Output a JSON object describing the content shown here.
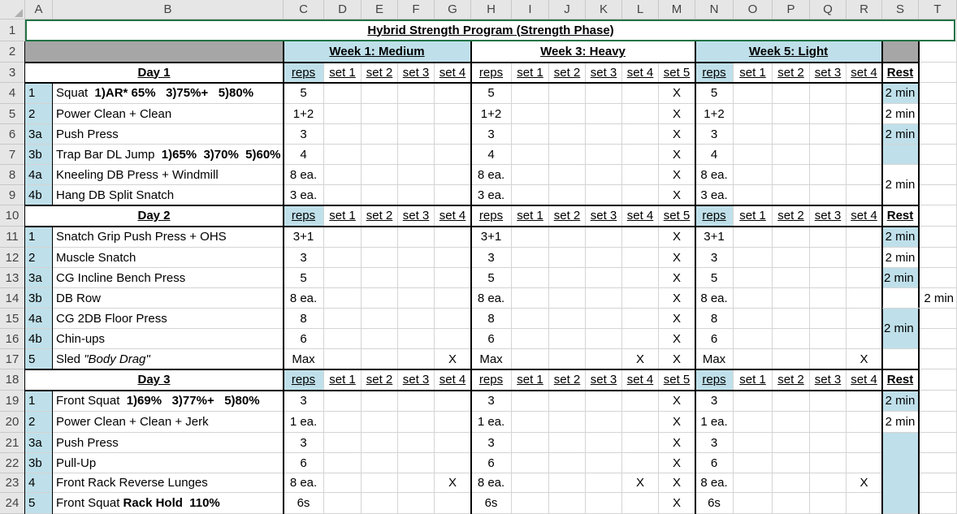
{
  "columns": [
    "A",
    "B",
    "C",
    "D",
    "E",
    "F",
    "G",
    "H",
    "I",
    "J",
    "K",
    "L",
    "M",
    "N",
    "O",
    "P",
    "Q",
    "R",
    "S",
    "T"
  ],
  "rows": [
    "1",
    "2",
    "3",
    "4",
    "5",
    "6",
    "7",
    "8",
    "9",
    "10",
    "11",
    "12",
    "13",
    "14",
    "15",
    "16",
    "17",
    "18",
    "19",
    "20",
    "21",
    "22",
    "23",
    "24"
  ],
  "title": "Hybrid Strength Program (Strength Phase)",
  "weeks": [
    "Week 1: Medium",
    "Week 3: Heavy",
    "Week 5: Light"
  ],
  "sub_headers": {
    "rest": "Rest",
    "week1": [
      "reps",
      "set 1",
      "set 2",
      "set 3",
      "set 4"
    ],
    "week3": [
      "reps",
      "set 1",
      "set 2",
      "set 3",
      "set 4",
      "set 5"
    ],
    "week5": [
      "reps",
      "set 1",
      "set 2",
      "set 3",
      "set 4"
    ]
  },
  "days": [
    {
      "name": "Day 1",
      "exercises": [
        {
          "num": "1",
          "name": "Squat  1)AR* 65%   3)75%+   5)80%",
          "w1": [
            "5",
            "",
            "",
            "",
            ""
          ],
          "w3": [
            "5",
            "",
            "",
            "",
            "",
            "X"
          ],
          "w5": [
            "5",
            "",
            "",
            "",
            ""
          ],
          "rest": "2 min"
        },
        {
          "num": "2",
          "name": "Power Clean + Clean",
          "w1": [
            "1+2",
            "",
            "",
            "",
            ""
          ],
          "w3": [
            "1+2",
            "",
            "",
            "",
            "",
            "X"
          ],
          "w5": [
            "1+2",
            "",
            "",
            "",
            ""
          ],
          "rest": "2 min"
        },
        {
          "num": "3a",
          "name": "Push Press",
          "w1": [
            "3",
            "",
            "",
            "",
            ""
          ],
          "w3": [
            "3",
            "",
            "",
            "",
            "",
            "X"
          ],
          "w5": [
            "3",
            "",
            "",
            "",
            ""
          ],
          "rest": "2 min"
        },
        {
          "num": "3b",
          "name": "Trap Bar DL Jump  1)65%  3)70%  5)60%",
          "w1": [
            "4",
            "",
            "",
            "",
            ""
          ],
          "w3": [
            "4",
            "",
            "",
            "",
            "",
            "X"
          ],
          "w5": [
            "4",
            "",
            "",
            "",
            ""
          ],
          "rest": ""
        },
        {
          "num": "4a",
          "name": "Kneeling DB Press + Windmill",
          "w1": [
            "8 ea.",
            "",
            "",
            "",
            ""
          ],
          "w3": [
            "8 ea.",
            "",
            "",
            "",
            "",
            "X"
          ],
          "w5": [
            "8 ea.",
            "",
            "",
            "",
            ""
          ],
          "rest": "2 min"
        },
        {
          "num": "4b",
          "name": "Hang DB Split Snatch",
          "w1": [
            "3 ea.",
            "",
            "",
            "",
            ""
          ],
          "w3": [
            "3 ea.",
            "",
            "",
            "",
            "",
            "X"
          ],
          "w5": [
            "3 ea.",
            "",
            "",
            "",
            ""
          ],
          "rest": ""
        }
      ]
    },
    {
      "name": "Day 2",
      "exercises": [
        {
          "num": "1",
          "name": "Snatch Grip Push Press + OHS",
          "w1": [
            "3+1",
            "",
            "",
            "",
            ""
          ],
          "w3": [
            "3+1",
            "",
            "",
            "",
            "",
            "X"
          ],
          "w5": [
            "3+1",
            "",
            "",
            "",
            ""
          ],
          "rest": "2 min"
        },
        {
          "num": "2",
          "name": "Muscle Snatch",
          "w1": [
            "3",
            "",
            "",
            "",
            ""
          ],
          "w3": [
            "3",
            "",
            "",
            "",
            "",
            "X"
          ],
          "w5": [
            "3",
            "",
            "",
            "",
            ""
          ],
          "rest": "2 min"
        },
        {
          "num": "3a",
          "name": "CG Incline Bench Press",
          "w1": [
            "5",
            "",
            "",
            "",
            ""
          ],
          "w3": [
            "5",
            "",
            "",
            "",
            "",
            "X"
          ],
          "w5": [
            "5",
            "",
            "",
            "",
            ""
          ],
          "rest": "2 min"
        },
        {
          "num": "3b",
          "name": "DB Row",
          "w1": [
            "8 ea.",
            "",
            "",
            "",
            ""
          ],
          "w3": [
            "8 ea.",
            "",
            "",
            "",
            "",
            "X"
          ],
          "w5": [
            "8 ea.",
            "",
            "",
            "",
            ""
          ],
          "rest": "2 min"
        },
        {
          "num": "4a",
          "name": "CG 2DB Floor Press",
          "w1": [
            "8",
            "",
            "",
            "",
            ""
          ],
          "w3": [
            "8",
            "",
            "",
            "",
            "",
            "X"
          ],
          "w5": [
            "8",
            "",
            "",
            "",
            ""
          ],
          "rest": "2 min"
        },
        {
          "num": "4b",
          "name": "Chin-ups",
          "w1": [
            "6",
            "",
            "",
            "",
            ""
          ],
          "w3": [
            "6",
            "",
            "",
            "",
            "",
            "X"
          ],
          "w5": [
            "6",
            "",
            "",
            "",
            ""
          ],
          "rest": ""
        },
        {
          "num": "5",
          "name": "Sled ",
          "name_italic": "\"Body Drag\"",
          "w1": [
            "Max",
            "",
            "",
            "",
            "X"
          ],
          "w3": [
            "Max",
            "",
            "",
            "",
            "X",
            "X"
          ],
          "w5": [
            "Max",
            "",
            "",
            "",
            "X"
          ],
          "rest": ""
        }
      ]
    },
    {
      "name": "Day 3",
      "exercises": [
        {
          "num": "1",
          "name": "Front Squat  1)69%   3)77%+   5)80%",
          "w1": [
            "3",
            "",
            "",
            "",
            ""
          ],
          "w3": [
            "3",
            "",
            "",
            "",
            "",
            "X"
          ],
          "w5": [
            "3",
            "",
            "",
            "",
            ""
          ],
          "rest": "2 min"
        },
        {
          "num": "2",
          "name": "Power Clean + Clean + Jerk",
          "w1": [
            "1 ea.",
            "",
            "",
            "",
            ""
          ],
          "w3": [
            "1 ea.",
            "",
            "",
            "",
            "",
            "X"
          ],
          "w5": [
            "1 ea.",
            "",
            "",
            "",
            ""
          ],
          "rest": "2 min"
        },
        {
          "num": "3a",
          "name": "Push Press",
          "w1": [
            "3",
            "",
            "",
            "",
            ""
          ],
          "w3": [
            "3",
            "",
            "",
            "",
            "",
            "X"
          ],
          "w5": [
            "3",
            "",
            "",
            "",
            ""
          ],
          "rest": ""
        },
        {
          "num": "3b",
          "name": "Pull-Up",
          "w1": [
            "6",
            "",
            "",
            "",
            ""
          ],
          "w3": [
            "6",
            "",
            "",
            "",
            "",
            "X"
          ],
          "w5": [
            "6",
            "",
            "",
            "",
            ""
          ],
          "rest": ""
        },
        {
          "num": "4",
          "name": "Front Rack Reverse Lunges",
          "w1": [
            "8 ea.",
            "",
            "",
            "",
            "X"
          ],
          "w3": [
            "8 ea.",
            "",
            "",
            "",
            "X",
            "X"
          ],
          "w5": [
            "8 ea.",
            "",
            "",
            "",
            "X"
          ],
          "rest": ""
        },
        {
          "num": "5",
          "name": "Front Squat Rack Hold  ",
          "name_bold": "110%",
          "w1": [
            "6s",
            "",
            "",
            "",
            ""
          ],
          "w3": [
            "6s",
            "",
            "",
            "",
            "",
            "X"
          ],
          "w5": [
            "6s",
            "",
            "",
            "",
            ""
          ],
          "rest": ""
        }
      ]
    }
  ],
  "colors": {
    "header_blue": "#bfe0ea",
    "gray": "#a6a6a6",
    "selection": "#217346"
  }
}
